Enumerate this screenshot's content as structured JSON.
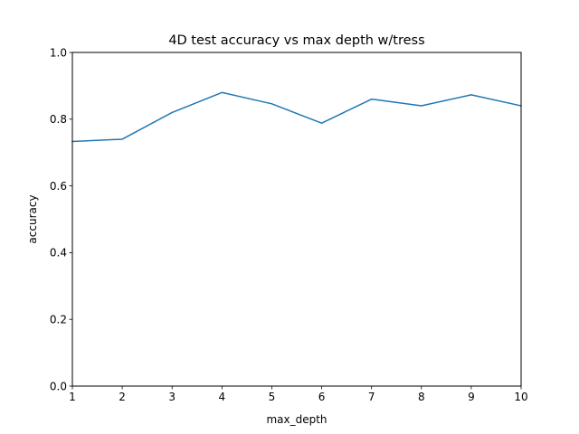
{
  "chart_data": {
    "type": "line",
    "title": "4D test accuracy vs max depth w/tress",
    "xlabel": "max_depth",
    "ylabel": "accuracy",
    "x": [
      1,
      2,
      3,
      4,
      5,
      6,
      7,
      8,
      9,
      10
    ],
    "xlim": [
      1,
      10
    ],
    "ylim": [
      0.0,
      1.0
    ],
    "xticks": [
      "1",
      "2",
      "3",
      "4",
      "5",
      "6",
      "7",
      "8",
      "9",
      "10"
    ],
    "yticks": [
      "0.0",
      "0.2",
      "0.4",
      "0.6",
      "0.8",
      "1.0"
    ],
    "grid": false,
    "series": [
      {
        "values": [
          0.733,
          0.74,
          0.82,
          0.88,
          0.846,
          0.788,
          0.86,
          0.84,
          0.873,
          0.84
        ],
        "color": "#1f77b4"
      }
    ]
  }
}
